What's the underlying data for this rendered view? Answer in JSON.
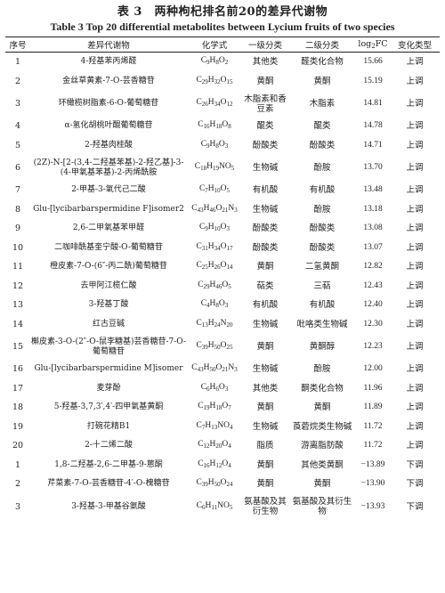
{
  "title_cn": "表 3　两种枸杞排名前20的差异代谢物",
  "title_en": "Table 3    Top 20 differential metabolites between Lycium fruits of two species",
  "headers": {
    "no": "序号",
    "metabolite": "差异代谢物",
    "formula": "化学式",
    "class1": "一级分类",
    "class2": "二级分类",
    "fc_prefix": "log",
    "fc_sub": "2",
    "fc_suffix": "FC",
    "change": "变化类型"
  },
  "rows": [
    {
      "no": "1",
      "name": "4-羟基苯丙烯醛",
      "formula": "C9H8O2",
      "class1": "其他类",
      "class2": "醛类化合物",
      "fc": "15.66",
      "change": "上调",
      "h": 1
    },
    {
      "no": "2",
      "name": "金丝草黄素-7-O-芸香糖苷",
      "formula": "C29H32O15",
      "class1": "黄酮",
      "class2": "黄酮",
      "fc": "15.19",
      "change": "上调",
      "h": 1
    },
    {
      "no": "3",
      "name": "环橄榄树脂素-6-O-葡萄糖苷",
      "formula": "C26H34O12",
      "class1": "木脂素和香豆素",
      "class2": "木脂素",
      "fc": "14.81",
      "change": "上调",
      "h": 2
    },
    {
      "no": "4",
      "name": "α-氢化胡桃叶醌葡萄糖苷",
      "formula": "C16H18O8",
      "class1": "醌类",
      "class2": "醌类",
      "fc": "14.78",
      "change": "上调",
      "h": 1
    },
    {
      "no": "5",
      "name": "2-羟基肉桂酸",
      "formula": "C9H8O3",
      "class1": "酚酸类",
      "class2": "酚酸类",
      "fc": "14.71",
      "change": "上调",
      "h": 1
    },
    {
      "no": "6",
      "name": "(2Z)-N-[2-(3,4-二羟基苯基)-2-羟乙基]-3-(4-甲氧基苯基)-2-丙烯酰胺",
      "formula": "C18H19NO5",
      "class1": "生物碱",
      "class2": "酚胺",
      "fc": "13.70",
      "change": "上调",
      "h": 2
    },
    {
      "no": "7",
      "name": "2-甲基-3-氧代己二酸",
      "formula": "C7H10O5",
      "class1": "有机酸",
      "class2": "有机酸",
      "fc": "13.48",
      "change": "上调",
      "h": 1
    },
    {
      "no": "8",
      "name": "Glu-[lycibarbarspermidine F]isomer2",
      "formula": "C43H46O21N3",
      "class1": "生物碱",
      "class2": "酚胺",
      "fc": "13.18",
      "change": "上调",
      "h": 1
    },
    {
      "no": "9",
      "name": "2,6-二甲氧基苯甲醛",
      "formula": "C9H10O3",
      "class1": "酚酸类",
      "class2": "酚酸类",
      "fc": "13.08",
      "change": "上调",
      "h": 1
    },
    {
      "no": "10",
      "name": "二咖啡酰基奎宁酸-O-葡萄糖苷",
      "formula": "C31H34O17",
      "class1": "酚酸类",
      "class2": "酚酸类",
      "fc": "13.07",
      "change": "上调",
      "h": 1
    },
    {
      "no": "11",
      "name": "橙皮素-7-O-(6″-丙二酰)葡萄糖苷",
      "formula": "C25H26O14",
      "class1": "黄酮",
      "class2": "二氢黄酮",
      "fc": "12.82",
      "change": "上调",
      "h": 1
    },
    {
      "no": "12",
      "name": "去甲阿江榄仁酸",
      "formula": "C29H46O5",
      "class1": "萜类",
      "class2": "三萜",
      "fc": "12.43",
      "change": "上调",
      "h": 1
    },
    {
      "no": "13",
      "name": "3-羟基丁酸",
      "formula": "C4H8O3",
      "class1": "有机酸",
      "class2": "有机酸",
      "fc": "12.40",
      "change": "上调",
      "h": 1
    },
    {
      "no": "14",
      "name": "红古豆碱",
      "formula": "C13H24N20",
      "class1": "生物碱",
      "class2": "吡咯类生物碱",
      "fc": "12.30",
      "change": "上调",
      "h": 1
    },
    {
      "no": "15",
      "name": "槲皮素-3-O-(2″-O-鼠李糖基)芸香糖苷-7-O-葡萄糖苷",
      "formula": "C39H50O25",
      "class1": "黄酮",
      "class2": "黄酮醇",
      "fc": "12.23",
      "change": "上调",
      "h": 2
    },
    {
      "no": "16",
      "name": "Glu-[lycibarbarspermidine M]isomer",
      "formula": "C43H50O21N3",
      "class1": "生物碱",
      "class2": "酚胺",
      "fc": "12.00",
      "change": "上调",
      "h": 1
    },
    {
      "no": "17",
      "name": "麦芽酚",
      "formula": "C6H6O3",
      "class1": "其他类",
      "class2": "酮类化合物",
      "fc": "11.96",
      "change": "上调",
      "h": 1
    },
    {
      "no": "18",
      "name": "5-羟基-3,7,3′,4′-四甲氧基黄酮",
      "formula": "C19H18O7",
      "class1": "黄酮",
      "class2": "黄酮",
      "fc": "11.89",
      "change": "上调",
      "h": 1
    },
    {
      "no": "19",
      "name": "打碗花精B1",
      "formula": "C7H13NO4",
      "class1": "生物碱",
      "class2": "莨菪烷类生物碱",
      "fc": "11.72",
      "change": "上调",
      "h": 1
    },
    {
      "no": "20",
      "name": "2-十二烯二酸",
      "formula": "C12H20O4",
      "class1": "脂质",
      "class2": "游离脂肪酸",
      "fc": "11.72",
      "change": "上调",
      "h": 1
    },
    {
      "no": "1",
      "name": "1,8-二羟基-2,6-二甲基-9-蒽酮",
      "formula": "C16H12O4",
      "class1": "黄酮",
      "class2": "其他类黄酮",
      "fc": "−13.89",
      "change": "下调",
      "h": 1
    },
    {
      "no": "2",
      "name": "芹菜素-7-O-芸香糖苷-4′-O-槐糖苷",
      "formula": "C39H50O24",
      "class1": "黄酮",
      "class2": "黄酮",
      "fc": "−13.90",
      "change": "下调",
      "h": 1
    },
    {
      "no": "3",
      "name": "3-羟基-3-甲基谷氨酸",
      "formula": "C6H11NO5",
      "class1": "氨基酸及其衍生物",
      "class2": "氨基酸及其衍生物",
      "fc": "−13.93",
      "change": "下调",
      "h": 2
    }
  ]
}
